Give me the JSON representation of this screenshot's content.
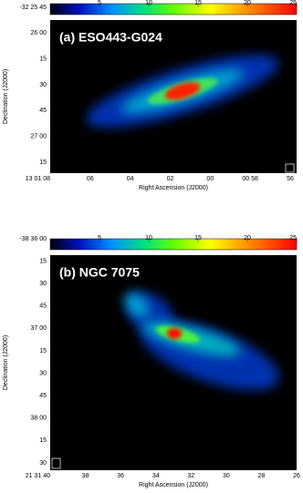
{
  "chart_data": [
    {
      "type": "image",
      "label": "(a) ESO443-G024",
      "xlabel": "Right Ascension (J2000)",
      "ylabel": "Declination (J2000)",
      "clim": [
        0,
        25
      ],
      "cticks": [
        5,
        10,
        15,
        20,
        25
      ],
      "xticks": [
        "13 01 08",
        "06",
        "04",
        "02",
        "00",
        "00 58",
        "56"
      ],
      "yticks": [
        "-32 25 45",
        "26 00",
        "15",
        "30",
        "45",
        "27 00",
        "15"
      ]
    },
    {
      "type": "image",
      "label": "(b) NGC 7075",
      "xlabel": "Right Ascension (J2000)",
      "ylabel": "Declination (J2000)",
      "clim": [
        0,
        25
      ],
      "cticks": [
        5,
        10,
        15,
        20,
        25
      ],
      "xticks": [
        "21 31 40",
        "38",
        "36",
        "34",
        "32",
        "30",
        "28",
        "26"
      ],
      "yticks": [
        "-38 36 00",
        "15",
        "30",
        "45",
        "37 00",
        "15",
        "30",
        "45",
        "38 00",
        "15",
        "30"
      ]
    }
  ]
}
